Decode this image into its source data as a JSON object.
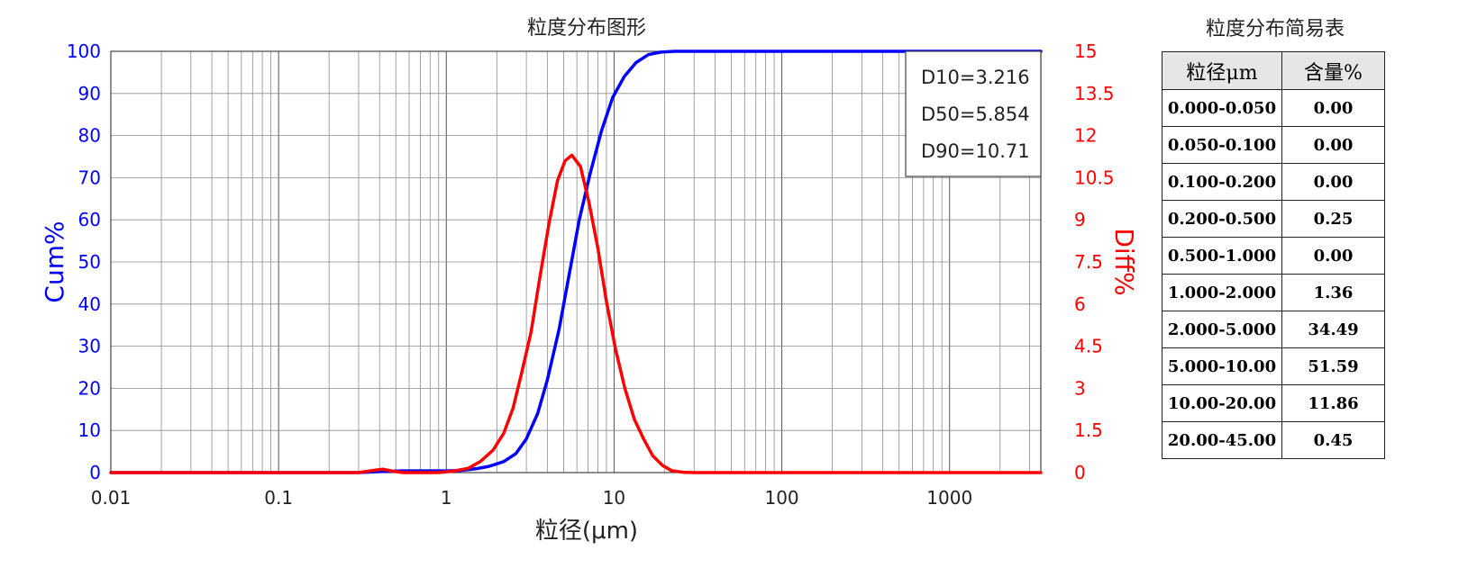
{
  "chart_data": {
    "type": "line",
    "title": "粒度分布图形",
    "xlabel": "粒径(μm)",
    "xscale": "log",
    "xlim": [
      0.01,
      3500
    ],
    "x_ticks": [
      0.01,
      0.1,
      1,
      10,
      100,
      1000
    ],
    "x_tick_labels": [
      "0.01",
      "0.1",
      "1",
      "10",
      "100",
      "1000"
    ],
    "y_left": {
      "label": "Cum%",
      "lim": [
        0,
        100
      ],
      "ticks": [
        0,
        10,
        20,
        30,
        40,
        50,
        60,
        70,
        80,
        90,
        100
      ],
      "tick_labels": [
        "0",
        "10",
        "20",
        "30",
        "40",
        "50",
        "60",
        "70",
        "80",
        "90",
        "100"
      ],
      "color": "#0000ff"
    },
    "y_right": {
      "label": "Diff%",
      "lim": [
        0,
        15
      ],
      "ticks": [
        0,
        1.5,
        3,
        4.5,
        6,
        7.5,
        9,
        10.5,
        12,
        13.5,
        15
      ],
      "tick_labels": [
        "0",
        "1.5",
        "3",
        "4.5",
        "6",
        "7.5",
        "9",
        "10.5",
        "12",
        "13.5",
        "15"
      ],
      "color": "#ff0000"
    },
    "grid": true,
    "series": [
      {
        "name": "Cum%",
        "axis": "left",
        "color": "#0000ff",
        "x": [
          0.01,
          0.1,
          0.3,
          0.42,
          0.55,
          1.0,
          1.2,
          1.5,
          1.8,
          2.2,
          2.6,
          3.0,
          3.5,
          4.0,
          4.7,
          5.4,
          6.2,
          7.2,
          8.4,
          9.8,
          11.5,
          13.5,
          16,
          19,
          23,
          30,
          100,
          1000,
          3500
        ],
        "y": [
          0,
          0,
          0,
          0.3,
          0.4,
          0.4,
          0.5,
          0.9,
          1.5,
          2.6,
          4.5,
          8,
          14,
          22,
          34,
          47,
          60,
          71,
          81,
          89,
          94,
          97.3,
          99.2,
          99.8,
          100,
          100,
          100,
          100,
          100
        ]
      },
      {
        "name": "Diff%",
        "axis": "right",
        "color": "#ff0000",
        "x": [
          0.01,
          0.1,
          0.3,
          0.37,
          0.42,
          0.47,
          0.55,
          0.9,
          1.1,
          1.35,
          1.6,
          1.9,
          2.2,
          2.5,
          2.8,
          3.2,
          3.6,
          4.1,
          4.6,
          5.1,
          5.6,
          6.3,
          7.1,
          8.0,
          9.0,
          10.2,
          11.6,
          13.2,
          15,
          17,
          19.5,
          22,
          26,
          30,
          40,
          100,
          1000,
          3500
        ],
        "y": [
          0,
          0,
          0,
          0.08,
          0.12,
          0.06,
          0,
          0,
          0.05,
          0.15,
          0.4,
          0.8,
          1.4,
          2.3,
          3.5,
          5.0,
          6.9,
          8.9,
          10.4,
          11.1,
          11.3,
          10.9,
          9.6,
          8.0,
          6.1,
          4.4,
          3.0,
          1.9,
          1.2,
          0.6,
          0.25,
          0.07,
          0.01,
          0,
          0,
          0,
          0,
          0
        ]
      }
    ],
    "annotations": [
      "D10=3.216",
      "D50=5.854",
      "D90=10.71"
    ]
  },
  "table": {
    "title": "粒度分布简易表",
    "headers": [
      "粒径μm",
      "含量%"
    ],
    "rows": [
      [
        "0.000-0.050",
        "0.00"
      ],
      [
        "0.050-0.100",
        "0.00"
      ],
      [
        "0.100-0.200",
        "0.00"
      ],
      [
        "0.200-0.500",
        "0.25"
      ],
      [
        "0.500-1.000",
        "0.00"
      ],
      [
        "1.000-2.000",
        "1.36"
      ],
      [
        "2.000-5.000",
        "34.49"
      ],
      [
        "5.000-10.00",
        "51.59"
      ],
      [
        "10.00-20.00",
        "11.86"
      ],
      [
        "20.00-45.00",
        "0.45"
      ]
    ]
  }
}
